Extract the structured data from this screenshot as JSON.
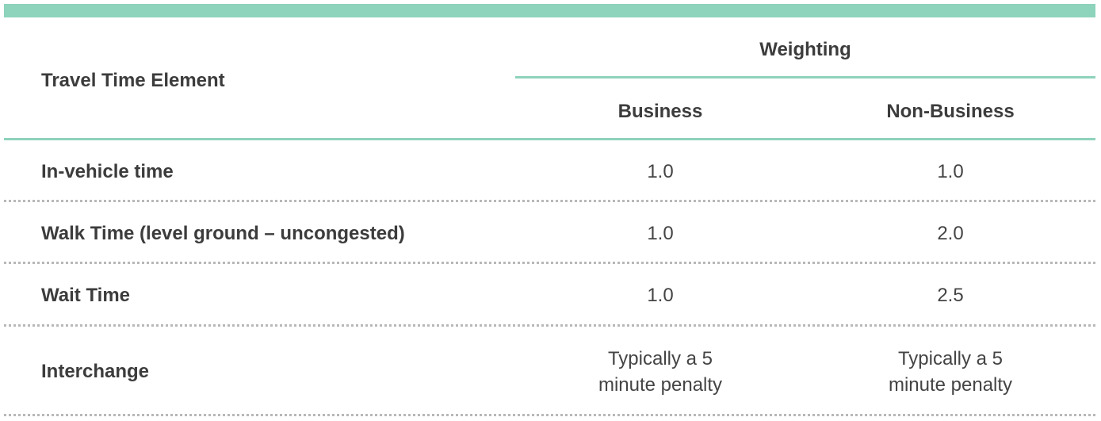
{
  "table": {
    "header": {
      "element": "Travel Time Element",
      "weighting": "Weighting",
      "business": "Business",
      "non_business": "Non-Business"
    },
    "rows": [
      {
        "element": "In-vehicle time",
        "business": "1.0",
        "non_business": "1.0"
      },
      {
        "element": "Walk Time (level ground – uncongested)",
        "business": "1.0",
        "non_business": "2.0"
      },
      {
        "element": "Wait Time",
        "business": "1.0",
        "non_business": "2.5"
      },
      {
        "element": "Interchange",
        "business": "Typically a 5 minute penalty",
        "non_business": "Typically a 5 minute penalty"
      }
    ]
  },
  "colors": {
    "accent": "#8ed3bb",
    "text": "#3c3c3c",
    "dotted_rule": "#b8b8b8"
  }
}
